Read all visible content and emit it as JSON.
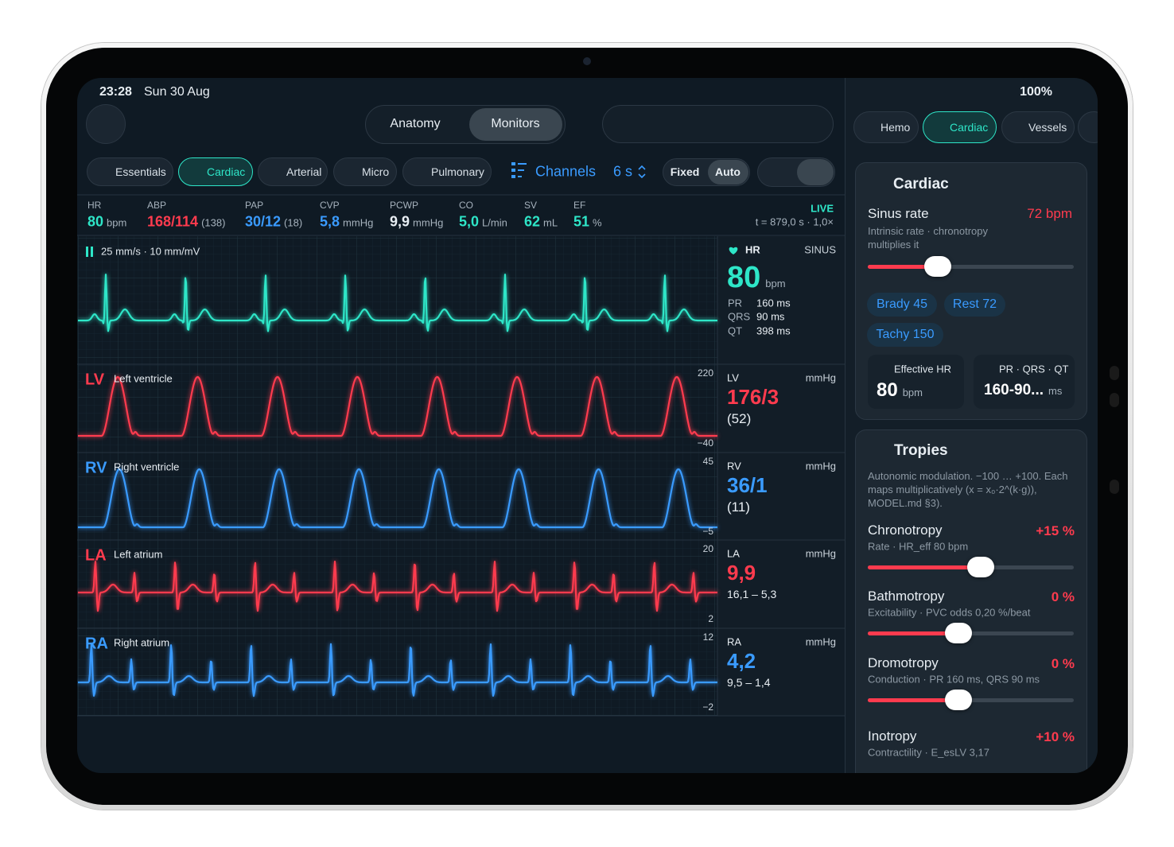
{
  "status": {
    "time": "23:28",
    "date": "Sun 30 Aug",
    "battery": "100%"
  },
  "view_tabs": [
    "Anatomy",
    "Monitors"
  ],
  "system_chips": [
    "Essentials",
    "Cardiac",
    "Arterial",
    "Micro",
    "Pulmonary"
  ],
  "toolbar": {
    "channels": "Channels",
    "window": "6 s",
    "scale_modes": [
      "Fixed",
      "Auto"
    ]
  },
  "vitals": [
    {
      "label": "HR",
      "value": "80",
      "suffix": "bpm"
    },
    {
      "label": "ABP",
      "value": "168/114",
      "suffix": "(138)"
    },
    {
      "label": "PAP",
      "value": "30/12",
      "suffix": "(18)"
    },
    {
      "label": "CVP",
      "value": "5,8",
      "suffix": "mmHg"
    },
    {
      "label": "PCWP",
      "value": "9,9",
      "suffix": "mmHg"
    },
    {
      "label": "CO",
      "value": "5,0",
      "suffix": "L/min"
    },
    {
      "label": "SV",
      "value": "62",
      "suffix": "mL"
    },
    {
      "label": "EF",
      "value": "51",
      "suffix": "%"
    }
  ],
  "live": {
    "label": "LIVE",
    "time": "t = 879,0 s · 1,0×"
  },
  "sweep": "25 mm/s · 10 mm/mV",
  "ecg": {
    "label": "HR",
    "rhythm": "SINUS",
    "value": "80",
    "unit": "bpm",
    "intervals": [
      {
        "name": "PR",
        "value": "160 ms"
      },
      {
        "name": "QRS",
        "value": "90 ms"
      },
      {
        "name": "QT",
        "value": "398 ms"
      }
    ]
  },
  "traces": [
    {
      "code": "LV",
      "name": "Left ventricle",
      "scale_top": "220",
      "scale_bottom": "−40",
      "unit": "mmHg",
      "value": "176/3",
      "sub": "(52)"
    },
    {
      "code": "RV",
      "name": "Right ventricle",
      "scale_top": "45",
      "scale_bottom": "−5",
      "unit": "mmHg",
      "value": "36/1",
      "sub": "(11)"
    },
    {
      "code": "LA",
      "name": "Left atrium",
      "scale_top": "20",
      "scale_bottom": "2",
      "unit": "mmHg",
      "value": "9,9",
      "sub": "16,1 – 5,3"
    },
    {
      "code": "RA",
      "name": "Right atrium",
      "scale_top": "12",
      "scale_bottom": "−2",
      "unit": "mmHg",
      "value": "4,2",
      "sub": "9,5 – 1,4"
    }
  ],
  "side_tabs": [
    "Hemo",
    "Cardiac",
    "Vessels"
  ],
  "cardiac_card": {
    "title": "Cardiac",
    "param": "Sinus rate",
    "param_value": "72 bpm",
    "description": "Intrinsic rate · chronotropy multiplies it",
    "presets": [
      "Brady 45",
      "Rest 72",
      "Tachy 150"
    ],
    "tiles": [
      {
        "label": "Effective HR",
        "value": "80",
        "unit": "bpm"
      },
      {
        "label": "PR · QRS · QT",
        "value": "160-90...",
        "unit": "ms"
      }
    ]
  },
  "tropies_card": {
    "title": "Tropies",
    "description": "Autonomic modulation. −100 … +100. Each maps multiplicatively (x = x₀·2^(k·g)), MODEL.md §3).",
    "items": [
      {
        "name": "Chronotropy",
        "detail": "Rate · HR_eff 80 bpm",
        "value": "+15 %"
      },
      {
        "name": "Bathmotropy",
        "detail": "Excitability · PVC odds 0,20 %/beat",
        "value": "0 %"
      },
      {
        "name": "Dromotropy",
        "detail": "Conduction · PR 160 ms, QRS 90 ms",
        "value": "0 %"
      },
      {
        "name": "Inotropy",
        "detail": "Contractility · E_esLV 3,17",
        "value": "+10 %"
      }
    ]
  }
}
